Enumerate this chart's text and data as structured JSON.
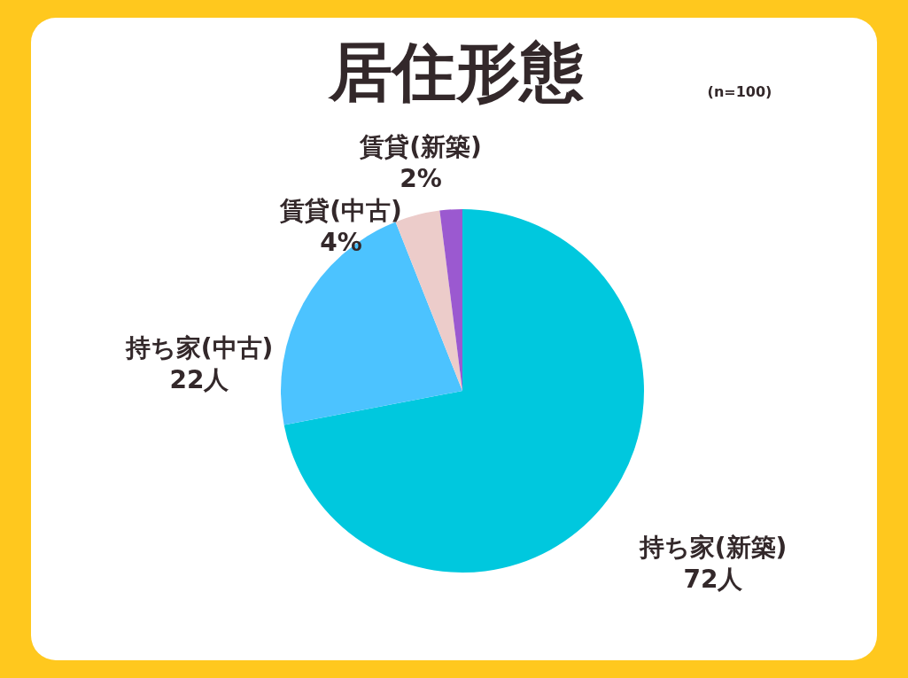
{
  "chart_data": {
    "type": "pie",
    "title": "居住形態",
    "subtitle": "(n=100)",
    "categories": [
      "持ち家(新築)",
      "持ち家(中古)",
      "賃貸(中古)",
      "賃貸(新築)"
    ],
    "values": [
      72,
      22,
      4,
      2
    ],
    "colors": [
      "#00c8de",
      "#4cc3ff",
      "#ecccca",
      "#9b59d0"
    ],
    "value_labels": [
      "72人",
      "22人",
      "4%",
      "2%"
    ],
    "legend": false
  }
}
